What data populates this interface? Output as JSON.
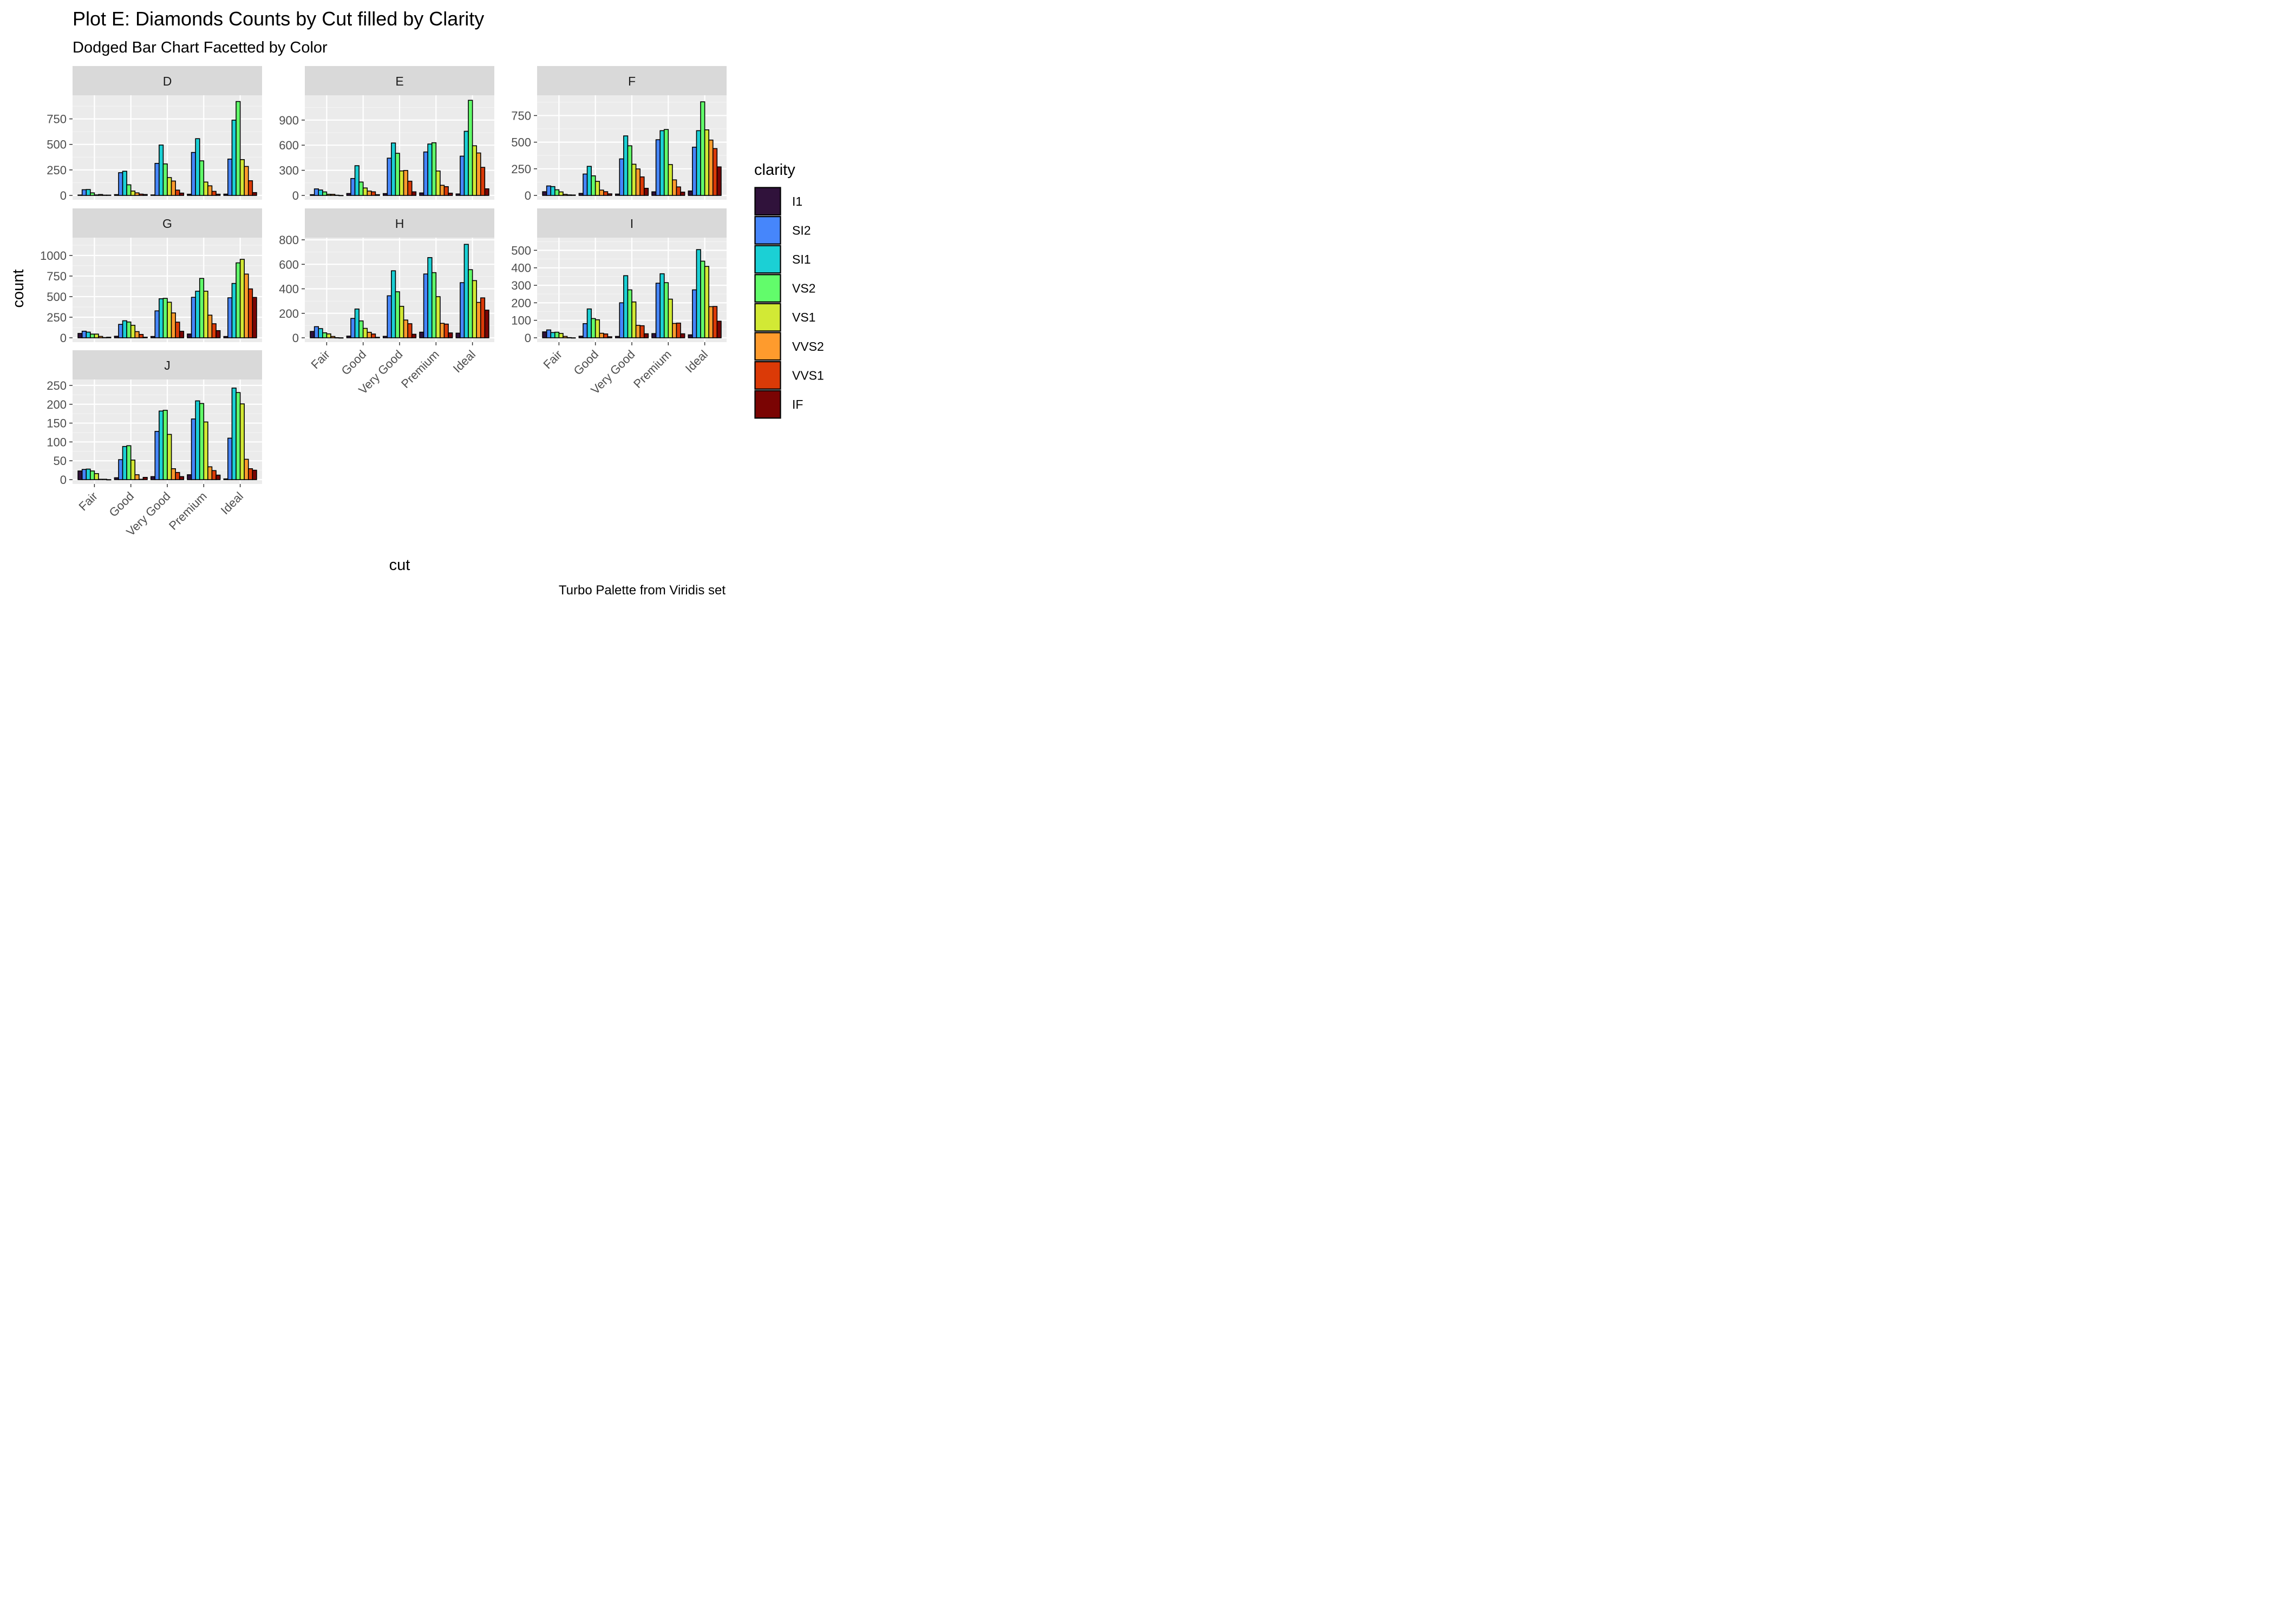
{
  "chart_data": {
    "type": "bar",
    "title": "Plot E: Diamonds Counts by Cut filled by Clarity",
    "subtitle": "Dodged Bar Chart Facetted by Color",
    "xlabel": "cut",
    "ylabel": "count",
    "caption": "Turbo Palette from Viridis set",
    "legend": {
      "title": "clarity",
      "position": "right"
    },
    "grid": true,
    "categories": [
      "Fair",
      "Good",
      "Very Good",
      "Premium",
      "Ideal"
    ],
    "series_names": [
      "I1",
      "SI2",
      "SI1",
      "VS2",
      "VS1",
      "VVS2",
      "VVS1",
      "IF"
    ],
    "colors": [
      "#30123B",
      "#4686FB",
      "#1BD0D5",
      "#62FC6B",
      "#D2E935",
      "#FE9B2D",
      "#DB3A07",
      "#7A0403"
    ],
    "facets": [
      {
        "label": "D",
        "ylim": [
          0,
          960
        ],
        "yticks": [
          0,
          250,
          500,
          750
        ],
        "values": [
          [
            4,
            56,
            58,
            25,
            5,
            9,
            3,
            3
          ],
          [
            8,
            223,
            237,
            104,
            43,
            25,
            13,
            9
          ],
          [
            5,
            314,
            494,
            309,
            175,
            141,
            52,
            23
          ],
          [
            12,
            421,
            556,
            339,
            131,
            94,
            40,
            12
          ],
          [
            13,
            356,
            738,
            920,
            351,
            284,
            144,
            28
          ]
        ]
      },
      {
        "label": "E",
        "ylim": [
          0,
          1170
        ],
        "yticks": [
          0,
          300,
          600,
          900
        ],
        "values": [
          [
            9,
            78,
            65,
            42,
            14,
            13,
            3,
            0
          ],
          [
            23,
            202,
            355,
            160,
            89,
            52,
            43,
            9
          ],
          [
            22,
            445,
            626,
            503,
            293,
            298,
            170,
            43
          ],
          [
            30,
            519,
            614,
            629,
            292,
            121,
            105,
            27
          ],
          [
            18,
            469,
            766,
            1136,
            593,
            507,
            335,
            79
          ]
        ]
      },
      {
        "label": "F",
        "ylim": [
          0,
          920
        ],
        "yticks": [
          0,
          250,
          500,
          750
        ],
        "values": [
          [
            35,
            89,
            83,
            53,
            33,
            10,
            5,
            4
          ],
          [
            19,
            201,
            273,
            184,
            132,
            50,
            35,
            15
          ],
          [
            13,
            343,
            559,
            466,
            293,
            249,
            174,
            67
          ],
          [
            34,
            523,
            608,
            619,
            290,
            146,
            80,
            31
          ],
          [
            42,
            453,
            608,
            879,
            616,
            520,
            440,
            268
          ]
        ]
      },
      {
        "label": "G",
        "ylim": [
          0,
          1190
        ],
        "yticks": [
          0,
          250,
          500,
          750,
          1000
        ],
        "values": [
          [
            53,
            80,
            69,
            45,
            45,
            17,
            3,
            7
          ],
          [
            19,
            163,
            207,
            192,
            152,
            75,
            41,
            7
          ],
          [
            16,
            327,
            474,
            479,
            432,
            302,
            190,
            79
          ],
          [
            46,
            492,
            566,
            721,
            566,
            275,
            171,
            87
          ],
          [
            16,
            486,
            660,
            910,
            953,
            774,
            594,
            491
          ]
        ]
      },
      {
        "label": "H",
        "ylim": [
          0,
          800
        ],
        "yticks": [
          0,
          200,
          400,
          600,
          800
        ],
        "values": [
          [
            52,
            91,
            75,
            41,
            32,
            11,
            1,
            0
          ],
          [
            14,
            158,
            235,
            138,
            77,
            45,
            31,
            4
          ],
          [
            12,
            343,
            547,
            376,
            257,
            145,
            115,
            29
          ],
          [
            46,
            521,
            655,
            532,
            336,
            118,
            112,
            40
          ],
          [
            38,
            450,
            763,
            556,
            467,
            289,
            326,
            226
          ]
        ]
      },
      {
        "label": "I",
        "ylim": [
          0,
          560
        ],
        "yticks": [
          0,
          100,
          200,
          300,
          400,
          500
        ],
        "values": [
          [
            34,
            45,
            30,
            32,
            25,
            8,
            1,
            0
          ],
          [
            9,
            81,
            165,
            110,
            103,
            26,
            22,
            6
          ],
          [
            8,
            200,
            355,
            274,
            205,
            71,
            69,
            23
          ],
          [
            24,
            312,
            366,
            315,
            221,
            82,
            84,
            23
          ],
          [
            17,
            274,
            504,
            438,
            408,
            178,
            179,
            95
          ]
        ]
      },
      {
        "label": "J",
        "ylim": [
          0,
          260
        ],
        "yticks": [
          0,
          50,
          100,
          150,
          200,
          250
        ],
        "values": [
          [
            23,
            27,
            28,
            23,
            16,
            1,
            1,
            0
          ],
          [
            5,
            53,
            88,
            90,
            52,
            13,
            1,
            6
          ],
          [
            8,
            128,
            182,
            184,
            120,
            29,
            19,
            8
          ],
          [
            13,
            161,
            209,
            202,
            153,
            34,
            24,
            12
          ],
          [
            2,
            110,
            243,
            231,
            201,
            54,
            29,
            25
          ]
        ]
      }
    ]
  }
}
